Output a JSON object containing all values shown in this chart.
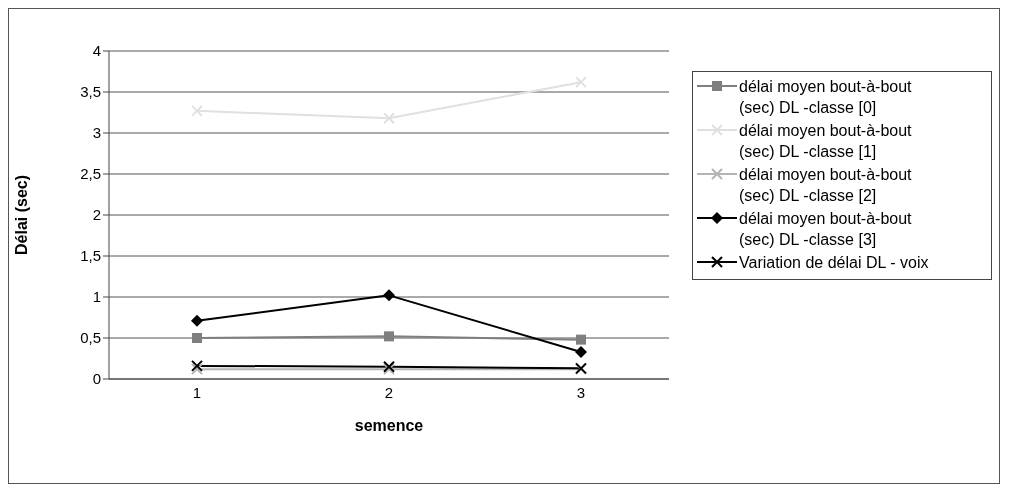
{
  "chart_data": {
    "type": "line",
    "xlabel": "semence",
    "ylabel": "Délai (sec)",
    "categories": [
      "1",
      "2",
      "3"
    ],
    "series": [
      {
        "name": "délai moyen bout-à-bout (sec) DL -classe [0]",
        "color": "#7f7f7f",
        "marker": "square",
        "values": [
          0.5,
          0.52,
          0.48
        ]
      },
      {
        "name": "délai moyen bout-à-bout (sec) DL -classe [1]",
        "color": "#e0e0e0",
        "marker": "cross",
        "values": [
          3.27,
          3.18,
          3.62
        ]
      },
      {
        "name": "délai moyen bout-à-bout (sec) DL -classe [2]",
        "color": "#b4b4b4",
        "marker": "cross",
        "values": [
          0.12,
          0.12,
          0.12
        ]
      },
      {
        "name": "délai moyen bout-à-bout (sec) DL -classe [3]",
        "color": "#000000",
        "marker": "diamond",
        "values": [
          0.71,
          1.02,
          0.33
        ]
      },
      {
        "name": "Variation de délai DL - voix",
        "color": "#000000",
        "marker": "cross",
        "values": [
          0.16,
          0.15,
          0.13
        ]
      }
    ],
    "ylim": [
      0,
      4
    ],
    "yticks": [
      0,
      {
        "value": 0.5,
        "label": "0,5"
      },
      1,
      {
        "value": 1.5,
        "label": "1,5"
      },
      2,
      {
        "value": 2.5,
        "label": "2,5"
      },
      3,
      {
        "value": 3.5,
        "label": "3,5"
      },
      4
    ],
    "grid": "y",
    "legend": "right"
  }
}
